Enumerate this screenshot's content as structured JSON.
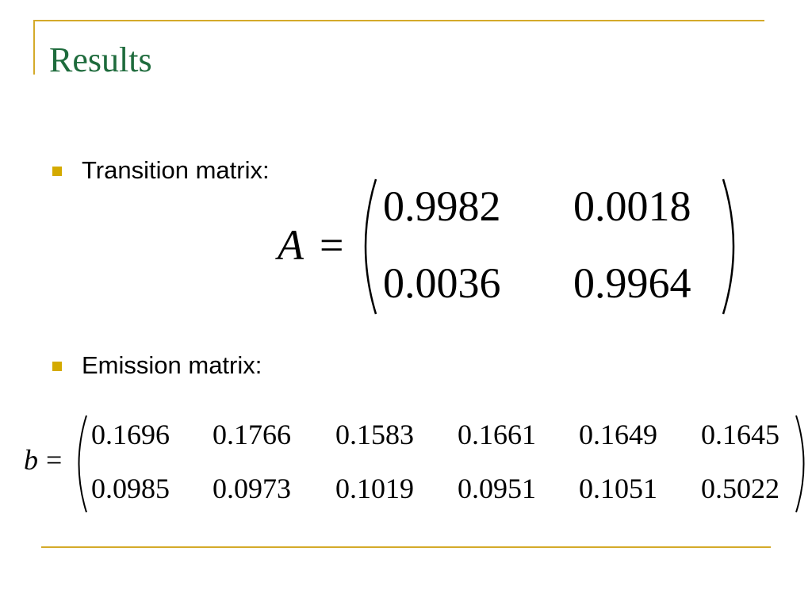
{
  "header": {
    "title": "Results"
  },
  "matrices": [
    {
      "label": "Transition matrix:",
      "symbol": "A",
      "relation": "=",
      "rows": [
        [
          "0.9982",
          "0.0018"
        ],
        [
          "0.0036",
          "0.9964"
        ]
      ]
    },
    {
      "label": "Emission matrix:",
      "symbol": "b",
      "relation": "=",
      "rows": [
        [
          "0.1696",
          "0.1766",
          "0.1583",
          "0.1661",
          "0.1649",
          "0.1645"
        ],
        [
          "0.0985",
          "0.0973",
          "0.1019",
          "0.0951",
          "0.1051",
          "0.5022"
        ]
      ]
    }
  ]
}
